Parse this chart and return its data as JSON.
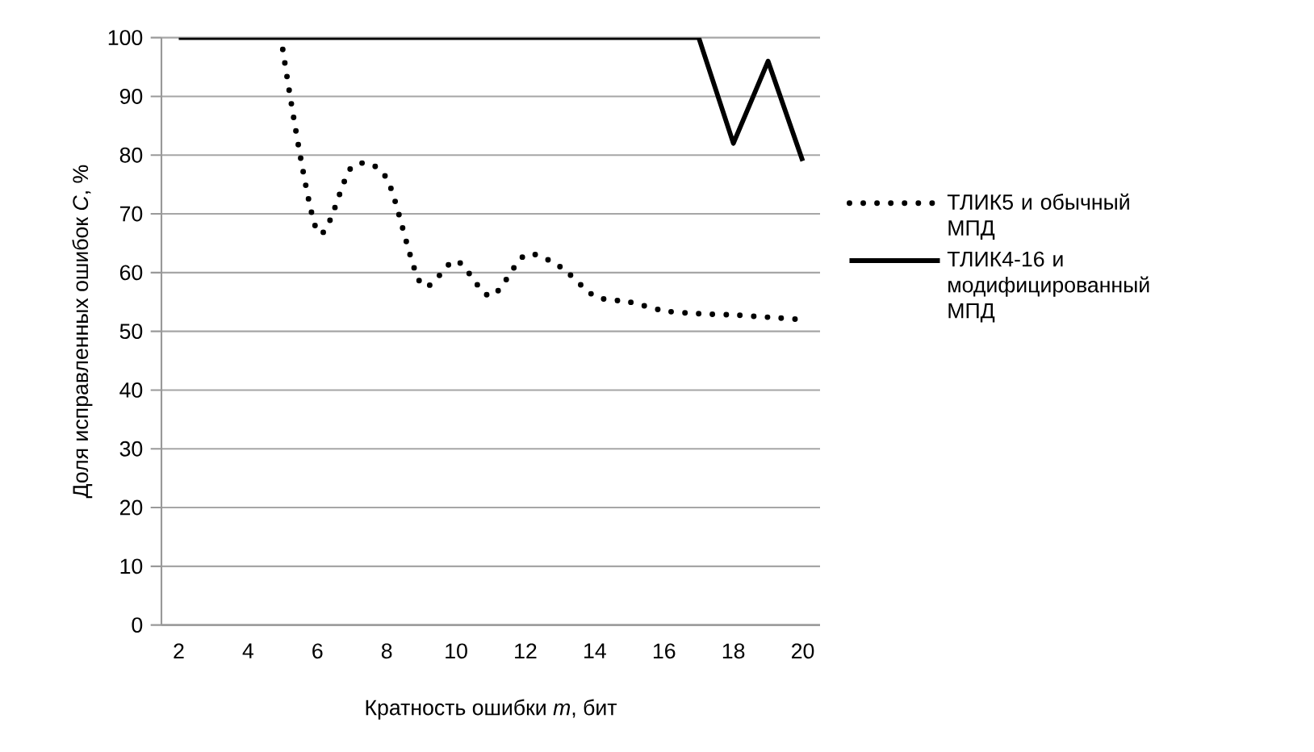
{
  "chart_data": {
    "type": "line",
    "xlabel": "Кратность ошибки *m*, бит",
    "ylabel": "Доля исправленных ошибок *C*, %",
    "categories": [
      "2",
      null,
      "4",
      null,
      "6",
      null,
      "8",
      null,
      "10",
      null,
      "12",
      null,
      "14",
      null,
      "16",
      null,
      "18",
      null,
      "20"
    ],
    "series": [
      {
        "name": "ТЛИК5 и обычный МПД",
        "color": "#000000",
        "line_style": "dotted",
        "values": [
          null,
          null,
          null,
          98,
          67,
          78,
          76,
          58,
          62,
          56,
          63,
          61,
          56,
          55,
          53.5,
          53,
          52.8,
          52.4,
          52
        ]
      },
      {
        "name": "ТЛИК4-16 и модифицированный МПД",
        "color": "#000000",
        "line_style": "solid",
        "values": [
          100,
          100,
          100,
          100,
          100,
          100,
          100,
          100,
          100,
          100,
          100,
          100,
          100,
          100,
          100,
          100,
          82,
          96,
          79
        ]
      }
    ],
    "ylim": [
      0,
      100
    ],
    "yticks": [
      0,
      10,
      20,
      30,
      40,
      50,
      60,
      70,
      80,
      90,
      100
    ],
    "grid": "y",
    "legend": "right"
  }
}
